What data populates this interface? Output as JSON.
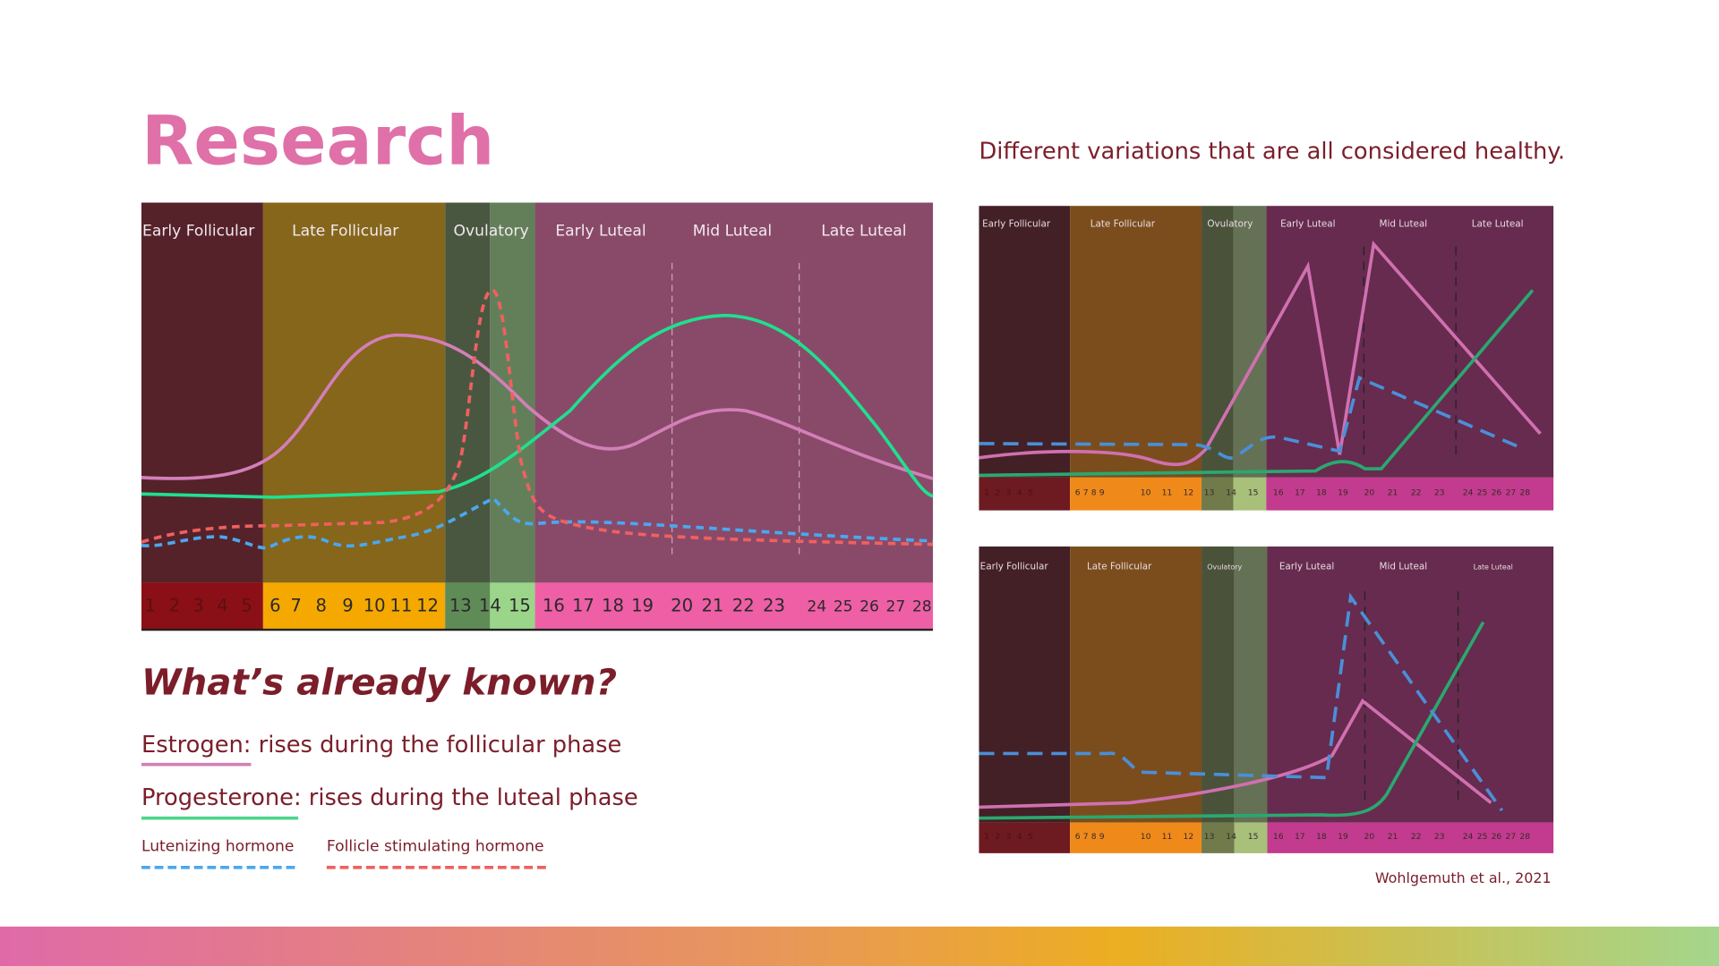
{
  "header": {
    "title": "Research",
    "subtitle": "Different variations that are all considered healthy."
  },
  "main_chart": {
    "phases": [
      "Early Follicular",
      "Late Follicular",
      "Ovulatory",
      "Early Luteal",
      "Mid Luteal",
      "Late Luteal"
    ],
    "days": [
      1,
      2,
      3,
      4,
      5,
      6,
      7,
      8,
      9,
      10,
      11,
      12,
      13,
      14,
      15,
      16,
      17,
      18,
      19,
      20,
      21,
      22,
      23,
      24,
      25,
      26,
      27,
      28
    ]
  },
  "variant_charts": [
    {
      "phases": [
        "Early Follicular",
        "Late Follicular",
        "Ovulatory",
        "Early Luteal",
        "Mid Luteal",
        "Late Luteal"
      ],
      "days": [
        1,
        2,
        3,
        4,
        5,
        6,
        7,
        8,
        9,
        10,
        11,
        12,
        13,
        14,
        15,
        16,
        17,
        18,
        19,
        20,
        21,
        22,
        23,
        24,
        25,
        26,
        27,
        28
      ]
    },
    {
      "phases": [
        "Early Follicular",
        "Late Follicular",
        "Ovulatory",
        "Early Luteal",
        "Mid Luteal",
        "Late Luteal"
      ],
      "days": [
        1,
        2,
        3,
        4,
        5,
        6,
        7,
        8,
        9,
        10,
        11,
        12,
        13,
        14,
        15,
        16,
        17,
        18,
        19,
        20,
        21,
        22,
        23,
        24,
        25,
        26,
        27,
        28
      ]
    }
  ],
  "known": {
    "heading": "What’s already known?",
    "items": [
      "Estrogen: rises during the follicular phase",
      "Progesterone: rises during the luteal phase",
      "Lutenizing hormone",
      "Follicle stimulating hormone"
    ]
  },
  "citation": "Wohlgemuth et al., 2021"
}
